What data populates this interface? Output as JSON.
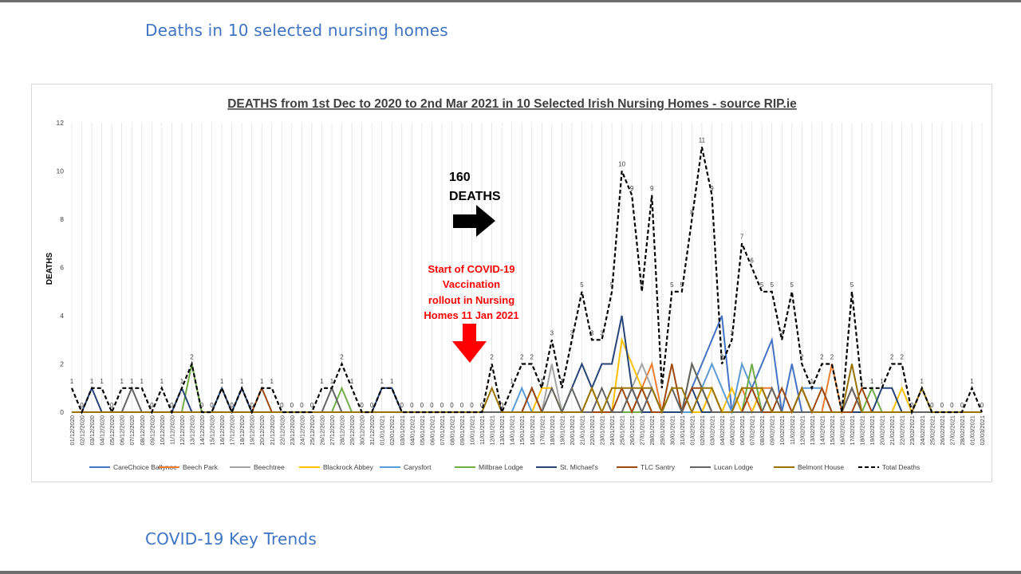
{
  "page": {
    "heading_top": "Deaths in 10 selected nursing homes",
    "heading_bottom": "COVID-19 Key Trends"
  },
  "chart_data": {
    "type": "line",
    "title": "DEATHS from 1st Dec to 2020 to 2nd Mar 2021 in 10 Selected Irish Nursing Homes - source RIP.ie",
    "xlabel": "",
    "ylabel": "DEATHS",
    "ylim": [
      0,
      12
    ],
    "yticks": [
      0,
      2,
      4,
      6,
      8,
      10,
      12
    ],
    "grid": true,
    "legend_position": "bottom",
    "x": [
      "01/12/2020",
      "02/12/2020",
      "03/12/2020",
      "04/12/2020",
      "05/12/2020",
      "06/12/2020",
      "07/12/2020",
      "08/12/2020",
      "09/12/2020",
      "10/12/2020",
      "11/12/2020",
      "12/12/2020",
      "13/12/2020",
      "14/12/2020",
      "15/12/2020",
      "16/12/2020",
      "17/12/2020",
      "18/12/2020",
      "19/12/2020",
      "20/12/2020",
      "21/12/2020",
      "22/12/2020",
      "23/12/2020",
      "24/12/2020",
      "25/12/2020",
      "26/12/2020",
      "27/12/2020",
      "28/12/2020",
      "29/12/2020",
      "30/12/2020",
      "31/12/2020",
      "01/01/2021",
      "02/01/2021",
      "03/01/2021",
      "04/01/2021",
      "05/01/2021",
      "06/01/2021",
      "07/01/2021",
      "08/01/2021",
      "09/01/2021",
      "10/01/2021",
      "11/01/2021",
      "12/01/2021",
      "13/01/2021",
      "14/01/2021",
      "15/01/2021",
      "16/01/2021",
      "17/01/2021",
      "18/01/2021",
      "19/01/2021",
      "20/01/2021",
      "21/01/2021",
      "22/01/2021",
      "23/01/2021",
      "24/01/2021",
      "25/01/2021",
      "26/01/2021",
      "27/01/2021",
      "28/01/2021",
      "29/01/2021",
      "30/01/2021",
      "31/01/2021",
      "01/02/2021",
      "02/02/2021",
      "03/02/2021",
      "04/02/2021",
      "05/02/2021",
      "06/02/2021",
      "07/02/2021",
      "08/02/2021",
      "09/02/2021",
      "10/02/2021",
      "11/02/2021",
      "12/02/2021",
      "13/02/2021",
      "14/02/2021",
      "15/02/2021",
      "16/02/2021",
      "17/02/2021",
      "18/02/2021",
      "19/02/2021",
      "20/02/2021",
      "21/02/2021",
      "22/02/2021",
      "23/02/2021",
      "24/02/2021",
      "25/02/2021",
      "26/02/2021",
      "27/02/2021",
      "28/02/2021",
      "01/03/2021",
      "02/03/2021"
    ],
    "series": [
      {
        "name": "CareChoice Ballynoe",
        "color": "#4472c4",
        "dash": false,
        "values": [
          0,
          0,
          0,
          0,
          0,
          0,
          0,
          0,
          0,
          0,
          0,
          0,
          0,
          0,
          0,
          0,
          0,
          0,
          0,
          0,
          0,
          0,
          0,
          0,
          0,
          0,
          0,
          0,
          0,
          0,
          0,
          0,
          0,
          0,
          0,
          0,
          0,
          0,
          0,
          0,
          0,
          0,
          0,
          0,
          0,
          0,
          0,
          0,
          0,
          0,
          0,
          0,
          0,
          0,
          0,
          0,
          0,
          0,
          0,
          0,
          0,
          0,
          1,
          2,
          3,
          4,
          0,
          0,
          1,
          2,
          3,
          0,
          2,
          0,
          0,
          0,
          0,
          0,
          0,
          0,
          0,
          0,
          0,
          0,
          0,
          0,
          0,
          0,
          0,
          0,
          0,
          0
        ]
      },
      {
        "name": "Beech Park",
        "color": "#ed7d31",
        "dash": false,
        "values": [
          0,
          0,
          0,
          0,
          0,
          0,
          0,
          0,
          0,
          0,
          0,
          0,
          0,
          0,
          0,
          0,
          0,
          0,
          0,
          0,
          0,
          0,
          0,
          0,
          0,
          0,
          0,
          0,
          0,
          0,
          0,
          0,
          0,
          0,
          0,
          0,
          0,
          0,
          0,
          0,
          0,
          0,
          0,
          0,
          0,
          0,
          0,
          0,
          0,
          0,
          0,
          0,
          0,
          0,
          0,
          0,
          0,
          1,
          2,
          0,
          0,
          0,
          0,
          0,
          1,
          0,
          0,
          1,
          0,
          1,
          1,
          0,
          0,
          1,
          0,
          0,
          2,
          0,
          1,
          0,
          0,
          0,
          0,
          0,
          0,
          0,
          0,
          0,
          0,
          0,
          0,
          0
        ]
      },
      {
        "name": "Beechtree",
        "color": "#a5a5a5",
        "dash": false,
        "values": [
          0,
          0,
          0,
          0,
          0,
          0,
          0,
          0,
          0,
          0,
          0,
          0,
          0,
          0,
          0,
          0,
          0,
          0,
          0,
          0,
          0,
          0,
          0,
          0,
          0,
          0,
          0,
          0,
          0,
          0,
          0,
          0,
          0,
          0,
          0,
          0,
          0,
          0,
          0,
          0,
          0,
          0,
          0,
          0,
          0,
          0,
          0,
          0,
          2,
          0,
          0,
          0,
          0,
          0,
          0,
          0,
          1,
          2,
          1,
          0,
          0,
          0,
          0,
          0,
          0,
          0,
          0,
          0,
          0,
          1,
          0,
          0,
          0,
          0,
          0,
          0,
          0,
          0,
          0,
          0,
          0,
          0,
          0,
          0,
          0,
          0,
          0,
          0,
          0,
          0,
          0,
          0
        ]
      },
      {
        "name": "Blackrock Abbey",
        "color": "#ffc000",
        "dash": false,
        "values": [
          0,
          0,
          0,
          0,
          0,
          0,
          0,
          0,
          0,
          0,
          0,
          0,
          0,
          0,
          0,
          0,
          0,
          0,
          0,
          0,
          0,
          0,
          0,
          0,
          0,
          0,
          0,
          0,
          0,
          0,
          0,
          0,
          0,
          0,
          0,
          0,
          0,
          0,
          0,
          0,
          0,
          0,
          0,
          0,
          0,
          0,
          0,
          1,
          1,
          0,
          0,
          0,
          1,
          0,
          0,
          3,
          2,
          1,
          0,
          0,
          0,
          0,
          0,
          0,
          1,
          0,
          1,
          0,
          0,
          1,
          0,
          0,
          0,
          0,
          0,
          0,
          0,
          0,
          0,
          0,
          0,
          0,
          0,
          1,
          0,
          0,
          0,
          0,
          0,
          0,
          0,
          0
        ]
      },
      {
        "name": "Carysfort",
        "color": "#5b9bd5",
        "dash": false,
        "values": [
          0,
          0,
          0,
          0,
          0,
          0,
          0,
          0,
          0,
          0,
          0,
          0,
          0,
          0,
          0,
          0,
          0,
          0,
          0,
          0,
          0,
          0,
          0,
          0,
          0,
          0,
          0,
          0,
          0,
          0,
          0,
          0,
          0,
          0,
          0,
          0,
          0,
          0,
          0,
          0,
          0,
          0,
          0,
          0,
          0,
          1,
          0,
          0,
          0,
          0,
          0,
          0,
          0,
          0,
          0,
          0,
          0,
          0,
          0,
          0,
          0,
          0,
          0,
          1,
          2,
          1,
          0,
          2,
          1,
          0,
          0,
          0,
          0,
          1,
          1,
          1,
          0,
          0,
          0,
          0,
          0,
          0,
          0,
          0,
          0,
          0,
          0,
          0,
          0,
          0,
          0,
          0
        ]
      },
      {
        "name": "Millbrae Lodge",
        "color": "#70ad47",
        "dash": false,
        "values": [
          0,
          0,
          0,
          0,
          0,
          0,
          0,
          0,
          0,
          0,
          0,
          0,
          2,
          0,
          0,
          0,
          0,
          0,
          0,
          0,
          0,
          0,
          0,
          0,
          0,
          0,
          0,
          1,
          0,
          0,
          0,
          0,
          0,
          0,
          0,
          0,
          0,
          0,
          0,
          0,
          0,
          0,
          0,
          0,
          0,
          0,
          0,
          0,
          0,
          0,
          0,
          0,
          0,
          0,
          0,
          0,
          0,
          0,
          0,
          0,
          0,
          0,
          2,
          1,
          0,
          0,
          0,
          0,
          2,
          0,
          0,
          0,
          0,
          0,
          0,
          0,
          0,
          0,
          0,
          0,
          1,
          0,
          0,
          0,
          0,
          0,
          0,
          0,
          0,
          0,
          0,
          0
        ]
      },
      {
        "name": "St. Michael's",
        "color": "#264478",
        "dash": false,
        "values": [
          0,
          0,
          1,
          0,
          0,
          0,
          0,
          0,
          0,
          0,
          0,
          1,
          0,
          0,
          0,
          1,
          0,
          1,
          0,
          0,
          0,
          0,
          0,
          0,
          0,
          0,
          0,
          0,
          0,
          0,
          0,
          1,
          1,
          0,
          0,
          0,
          0,
          0,
          0,
          0,
          0,
          0,
          0,
          0,
          0,
          0,
          1,
          0,
          0,
          0,
          1,
          2,
          1,
          2,
          2,
          4,
          1,
          0,
          0,
          0,
          0,
          0,
          1,
          0,
          0,
          0,
          0,
          0,
          0,
          0,
          0,
          0,
          0,
          0,
          0,
          0,
          0,
          0,
          0,
          0,
          0,
          1,
          1,
          0,
          0,
          0,
          0,
          0,
          0,
          0,
          0,
          0
        ]
      },
      {
        "name": "TLC Santry",
        "color": "#9e480e",
        "dash": false,
        "values": [
          0,
          0,
          0,
          0,
          0,
          0,
          0,
          0,
          0,
          0,
          0,
          0,
          0,
          0,
          0,
          0,
          0,
          0,
          0,
          1,
          0,
          0,
          0,
          0,
          0,
          0,
          0,
          0,
          0,
          0,
          0,
          0,
          0,
          0,
          0,
          0,
          0,
          0,
          0,
          0,
          0,
          0,
          0,
          0,
          0,
          0,
          1,
          0,
          0,
          0,
          0,
          0,
          0,
          0,
          0,
          1,
          0,
          1,
          0,
          0,
          2,
          0,
          1,
          1,
          0,
          0,
          0,
          0,
          1,
          0,
          0,
          1,
          0,
          1,
          0,
          1,
          0,
          0,
          0,
          1,
          0,
          0,
          0,
          0,
          0,
          0,
          0,
          0,
          0,
          0,
          0,
          0
        ]
      },
      {
        "name": "Lucan Lodge",
        "color": "#636363",
        "dash": false,
        "values": [
          0,
          0,
          0,
          0,
          0,
          0,
          1,
          0,
          0,
          0,
          0,
          0,
          0,
          0,
          0,
          0,
          0,
          0,
          0,
          0,
          0,
          0,
          0,
          0,
          0,
          0,
          1,
          0,
          0,
          0,
          0,
          0,
          0,
          0,
          0,
          0,
          0,
          0,
          0,
          0,
          0,
          0,
          0,
          0,
          0,
          0,
          0,
          0,
          1,
          0,
          1,
          0,
          0,
          1,
          0,
          0,
          1,
          0,
          1,
          0,
          1,
          0,
          2,
          1,
          0,
          0,
          0,
          0,
          0,
          0,
          1,
          0,
          0,
          0,
          0,
          0,
          0,
          0,
          1,
          0,
          0,
          0,
          0,
          0,
          0,
          0,
          0,
          0,
          0,
          0,
          0,
          0
        ]
      },
      {
        "name": "Belmont House",
        "color": "#997300",
        "dash": false,
        "values": [
          0,
          0,
          0,
          0,
          0,
          0,
          0,
          0,
          0,
          0,
          0,
          0,
          0,
          0,
          0,
          0,
          0,
          0,
          0,
          0,
          0,
          0,
          0,
          0,
          0,
          0,
          0,
          0,
          0,
          0,
          0,
          0,
          0,
          0,
          0,
          0,
          0,
          0,
          0,
          0,
          0,
          0,
          1,
          0,
          0,
          0,
          0,
          0,
          0,
          0,
          0,
          0,
          1,
          0,
          1,
          1,
          1,
          1,
          1,
          0,
          1,
          1,
          0,
          1,
          1,
          0,
          0,
          1,
          1,
          1,
          0,
          0,
          0,
          1,
          0,
          0,
          0,
          0,
          2,
          0,
          0,
          0,
          0,
          0,
          0,
          1,
          0,
          0,
          0,
          0,
          0,
          0
        ]
      },
      {
        "name": "Total Deaths",
        "color": "#000000",
        "dash": true,
        "values": [
          1,
          0,
          1,
          1,
          0,
          1,
          1,
          1,
          0,
          1,
          0,
          1,
          2,
          0,
          0,
          1,
          0,
          1,
          0,
          1,
          1,
          0,
          0,
          0,
          0,
          1,
          1,
          2,
          1,
          0,
          0,
          1,
          1,
          0,
          0,
          0,
          0,
          0,
          0,
          0,
          0,
          0,
          2,
          0,
          1,
          2,
          2,
          1,
          3,
          1,
          3,
          5,
          3,
          3,
          5,
          10,
          9,
          5,
          9,
          1,
          5,
          5,
          8,
          11,
          9,
          2,
          3,
          7,
          6,
          5,
          5,
          3,
          5,
          2,
          1,
          2,
          2,
          0,
          5,
          1,
          1,
          1,
          2,
          2,
          0,
          1,
          0,
          0,
          0,
          0,
          1,
          0
        ]
      }
    ],
    "data_labels": [
      1,
      0,
      1,
      1,
      0,
      1,
      1,
      1,
      0,
      1,
      0,
      1,
      2,
      0,
      0,
      1,
      0,
      1,
      0,
      1,
      1,
      0,
      0,
      0,
      0,
      1,
      1,
      2,
      1,
      0,
      0,
      1,
      1,
      0,
      0,
      0,
      0,
      0,
      0,
      0,
      0,
      0,
      2,
      0,
      1,
      2,
      2,
      1,
      3,
      1,
      3,
      5,
      3,
      3,
      5,
      10,
      9,
      5,
      9,
      1,
      5,
      5,
      8,
      11,
      9,
      2,
      3,
      7,
      6,
      5,
      5,
      3,
      5,
      2,
      1,
      2,
      2,
      0,
      5,
      1,
      1,
      1,
      2,
      2,
      0,
      1,
      0,
      0,
      0,
      0,
      1,
      0
    ],
    "annotations": {
      "deaths_count": "160",
      "deaths_word": "DEATHS",
      "vaccination_lines": [
        "Start of COVID-19",
        "Vaccination",
        "rollout in Nursing",
        "Homes 11 Jan 2021"
      ]
    },
    "colors": {
      "annotation_red": "#ff0000",
      "grid": "#d9d9d9",
      "axis": "#bfbfbf"
    }
  }
}
